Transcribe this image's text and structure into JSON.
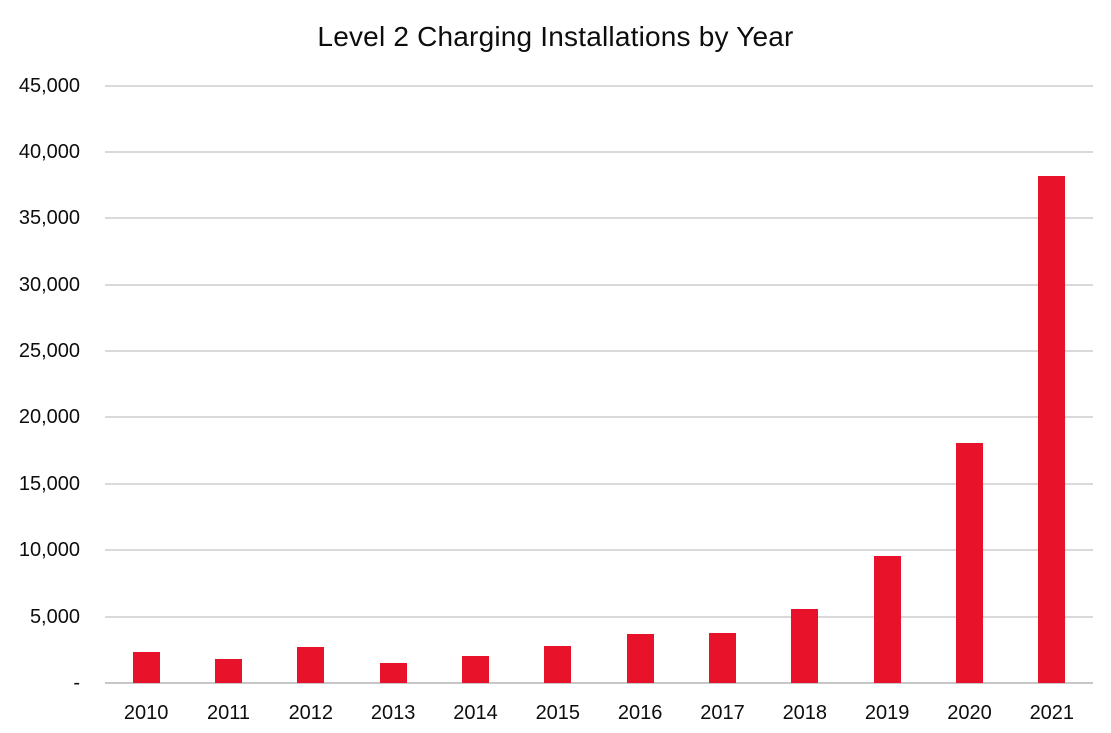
{
  "chart_data": {
    "type": "bar",
    "title": "Level 2 Charging Installations by Year",
    "categories": [
      "2010",
      "2011",
      "2012",
      "2013",
      "2014",
      "2015",
      "2016",
      "2017",
      "2018",
      "2019",
      "2020",
      "2021"
    ],
    "values": [
      2300,
      1800,
      2700,
      1500,
      2000,
      2800,
      3700,
      3800,
      5600,
      9600,
      18100,
      38200
    ],
    "xlabel": "",
    "ylabel": "",
    "ylim": [
      0,
      45000
    ],
    "ytick_interval": 5000,
    "ytick_labels": [
      "-",
      "5,000",
      "10,000",
      "15,000",
      "20,000",
      "25,000",
      "30,000",
      "35,000",
      "40,000",
      "45,000"
    ],
    "grid": "horizontal",
    "legend": "none",
    "bar_color": "#e8122b",
    "gridline_color": "#d9d9d9",
    "axis_line_color": "#c7c7c7",
    "text_color": "#0d0d0d"
  }
}
